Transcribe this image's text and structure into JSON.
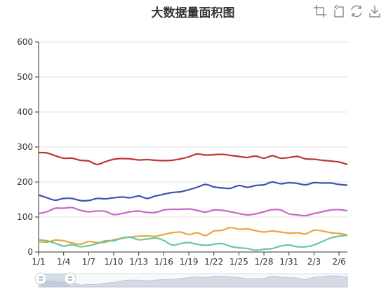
{
  "chart_data": {
    "type": "area",
    "title": "大数据量面积图",
    "xlabel": "",
    "ylabel": "",
    "ylim": [
      0,
      600
    ],
    "yticks": [
      "0",
      "100",
      "200",
      "300",
      "400",
      "500",
      "600"
    ],
    "grid": true,
    "legend": "none",
    "x": [
      "1/1",
      "1/2",
      "1/3",
      "1/4",
      "1/5",
      "1/6",
      "1/7",
      "1/8",
      "1/9",
      "1/10",
      "1/11",
      "1/12",
      "1/13",
      "1/14",
      "1/15",
      "1/16",
      "1/17",
      "1/18",
      "1/19",
      "1/20",
      "1/21",
      "1/22",
      "1/23",
      "1/24",
      "1/25",
      "1/26",
      "1/27",
      "1/28",
      "1/29",
      "1/30",
      "1/31",
      "2/1",
      "2/2",
      "2/3",
      "2/4",
      "2/5",
      "2/6",
      "2/7"
    ],
    "xticks": [
      "1/1",
      "1/4",
      "1/7",
      "1/10",
      "1/13",
      "1/16",
      "1/19",
      "1/22",
      "1/25",
      "1/28",
      "1/31",
      "2/3",
      "2/6"
    ],
    "series": [
      {
        "color": "#c23531",
        "values": [
          284,
          283,
          275,
          268,
          268,
          262,
          260,
          250,
          258,
          265,
          267,
          266,
          263,
          264,
          262,
          261,
          262,
          266,
          272,
          280,
          277,
          278,
          279,
          276,
          273,
          270,
          274,
          268,
          275,
          268,
          270,
          273,
          266,
          265,
          262,
          260,
          257,
          250
        ]
      },
      {
        "color": "#3f51b5",
        "values": [
          163,
          155,
          148,
          153,
          153,
          147,
          147,
          153,
          152,
          155,
          157,
          155,
          160,
          153,
          160,
          165,
          170,
          172,
          178,
          185,
          193,
          186,
          183,
          182,
          190,
          185,
          190,
          192,
          200,
          195,
          198,
          196,
          192,
          198,
          197,
          197,
          193,
          191
        ]
      },
      {
        "color": "#c568c9",
        "values": [
          110,
          115,
          125,
          125,
          127,
          119,
          115,
          117,
          116,
          107,
          110,
          115,
          117,
          113,
          113,
          120,
          122,
          122,
          123,
          119,
          114,
          120,
          119,
          115,
          110,
          106,
          109,
          115,
          121,
          120,
          109,
          106,
          104,
          110,
          115,
          120,
          121,
          118
        ]
      },
      {
        "color": "#eaa543",
        "values": [
          30,
          28,
          34,
          32,
          26,
          22,
          30,
          27,
          28,
          35,
          39,
          43,
          45,
          46,
          45,
          50,
          55,
          57,
          50,
          55,
          47,
          60,
          62,
          70,
          65,
          66,
          61,
          57,
          60,
          57,
          54,
          55,
          52,
          62,
          60,
          55,
          53,
          49
        ]
      },
      {
        "color": "#6bc79a",
        "values": [
          35,
          32,
          25,
          17,
          21,
          15,
          18,
          24,
          32,
          32,
          40,
          42,
          35,
          37,
          40,
          33,
          20,
          24,
          27,
          22,
          19,
          22,
          24,
          16,
          12,
          10,
          5,
          8,
          10,
          17,
          20,
          15,
          15,
          20,
          30,
          40,
          45,
          48
        ]
      }
    ]
  }
}
